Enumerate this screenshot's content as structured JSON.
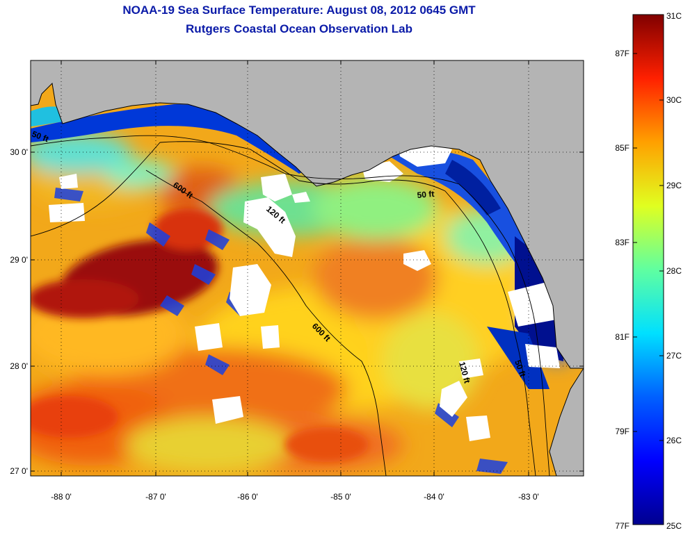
{
  "title": {
    "line1": "NOAA-19 Sea Surface Temperature:  August 08, 2012 0645 GMT",
    "line2": "Rutgers Coastal Ocean Observation Lab"
  },
  "map": {
    "lon_labels": [
      "-88 0'",
      "-87 0'",
      "-86 0'",
      "-85 0'",
      "-84 0'",
      "-83 0'"
    ],
    "lat_labels": [
      "30 0'",
      "29 0'",
      "28 0'",
      "27 0'"
    ],
    "isobath_labels": [
      "50 ft",
      "600 ft",
      "120 ft",
      "50 ft",
      "600 ft",
      "120 ft",
      "50 ft"
    ],
    "colors": {
      "land": "#b4b4b4",
      "cloud": "#ffffff",
      "coast": "#000000"
    }
  },
  "colorbar": {
    "fahrenheit": [
      "87F",
      "85F",
      "83F",
      "81F",
      "79F",
      "77F"
    ],
    "celsius": [
      "31C",
      "30C",
      "29C",
      "28C",
      "27C",
      "26C",
      "25C"
    ],
    "colors": [
      "#00008f",
      "#0000ff",
      "#0080ff",
      "#00ffff",
      "#80ff80",
      "#ffff00",
      "#ff8000",
      "#ff0000",
      "#800000"
    ]
  }
}
